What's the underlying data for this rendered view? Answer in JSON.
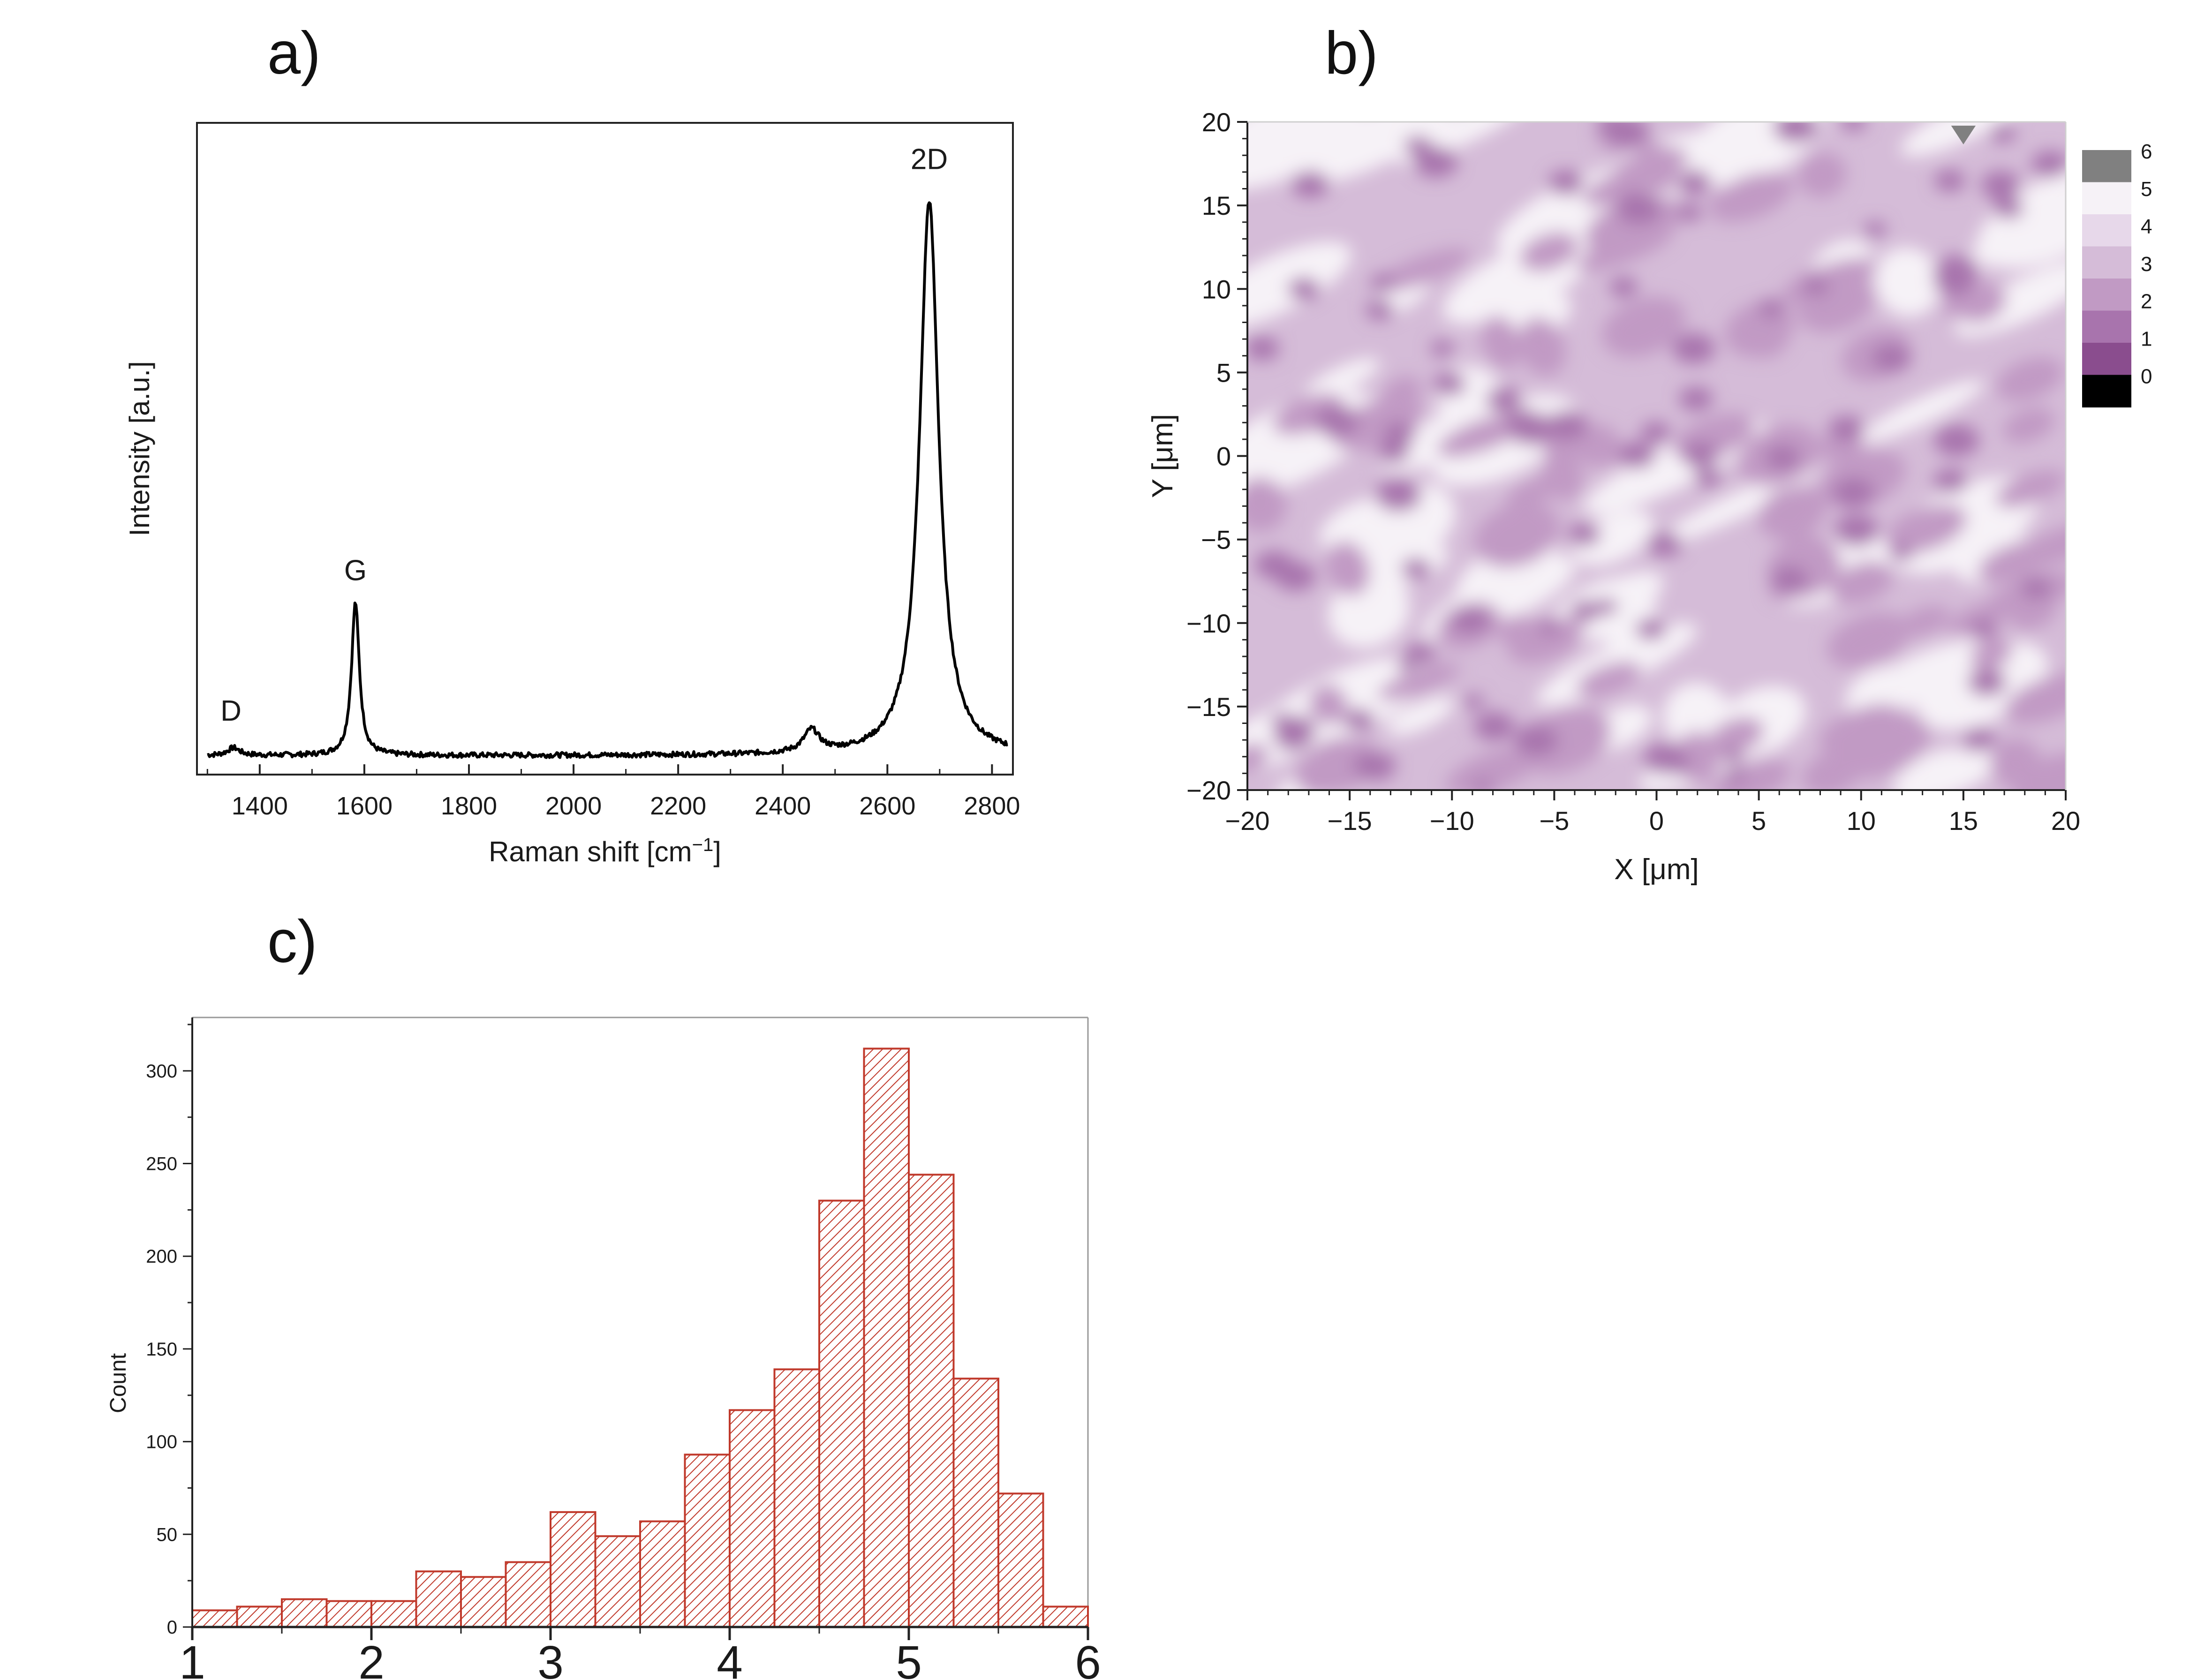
{
  "figure": {
    "panel_labels": {
      "a": "a)",
      "b": "b)",
      "c": "c)"
    }
  },
  "chart_data": [
    {
      "id": "a",
      "type": "line",
      "title": "",
      "xlabel": "Raman shift [cm⁻¹]",
      "ylabel": "Intensity [a.u.]",
      "xlim": [
        1280,
        2840
      ],
      "ylim": [
        0,
        1.0
      ],
      "xticks": [
        1400,
        1600,
        1800,
        2000,
        2200,
        2400,
        2600,
        2800
      ],
      "baseline": 0.015,
      "peaks": [
        {
          "label": "D",
          "center": 1350,
          "height": 0.012,
          "width": 14
        },
        {
          "label": "G",
          "center": 1583,
          "height": 0.24,
          "width": 9
        },
        {
          "label": "",
          "center": 2455,
          "height": 0.035,
          "width": 18
        },
        {
          "label": "2D",
          "center": 2680,
          "height": 0.87,
          "width": 22
        }
      ],
      "annotations": [
        {
          "text": "D",
          "x": 1345,
          "y": 0.07
        },
        {
          "text": "G",
          "x": 1583,
          "y": 0.29
        },
        {
          "text": "2D",
          "x": 2680,
          "y": 0.935
        }
      ]
    },
    {
      "id": "b",
      "type": "heatmap",
      "title": "",
      "xlabel": "X [μm]",
      "ylabel": "Y [μm]",
      "xlim": [
        -20,
        20
      ],
      "ylim": [
        -20,
        20
      ],
      "xticks": [
        -20,
        -15,
        -10,
        -5,
        0,
        5,
        10,
        15,
        20
      ],
      "yticks": [
        -20,
        -15,
        -10,
        -5,
        0,
        5,
        10,
        15,
        20
      ],
      "colorbar": {
        "levels": [
          0,
          1,
          2,
          3,
          4,
          5,
          6
        ],
        "labels": [
          "0",
          "1",
          "2",
          "3",
          "4",
          "5",
          "6"
        ],
        "colors": [
          "#000000",
          "#8a4d8e",
          "#a874ad",
          "#c19ac4",
          "#d5bcd8",
          "#e7d8ea",
          "#f6f2f7",
          "#808080"
        ]
      }
    },
    {
      "id": "c",
      "type": "bar",
      "title": "",
      "xlabel": "",
      "ylabel": "Count",
      "xlim": [
        1,
        6
      ],
      "ylim": [
        0,
        325
      ],
      "xticks": [
        1,
        2,
        3,
        4,
        5,
        6
      ],
      "yticks": [
        0,
        50,
        100,
        150,
        200,
        250,
        300
      ],
      "bin_width": 0.25,
      "bins_start": [
        1.0,
        1.25,
        1.5,
        1.75,
        2.0,
        2.25,
        2.5,
        2.75,
        3.0,
        3.25,
        3.5,
        3.75,
        4.0,
        4.25,
        4.5,
        4.75,
        5.0,
        5.25,
        5.5,
        5.75
      ],
      "values": [
        9,
        11,
        15,
        14,
        14,
        30,
        27,
        35,
        62,
        49,
        57,
        93,
        117,
        139,
        230,
        312,
        244,
        134,
        72,
        11
      ],
      "bar_color": "#c0392b"
    }
  ]
}
